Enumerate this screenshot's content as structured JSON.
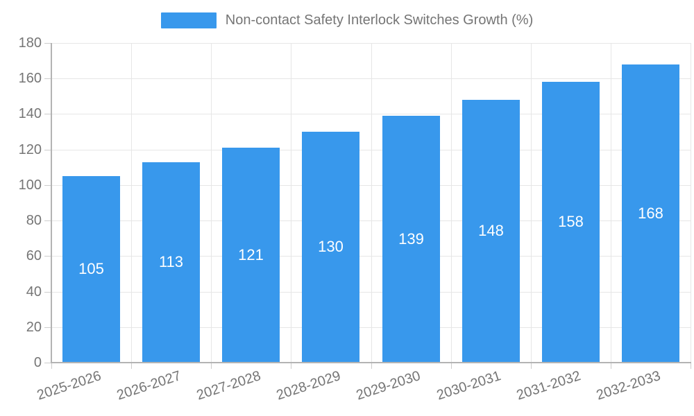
{
  "chart_data": {
    "type": "bar",
    "title": "Non-contact Safety Interlock Switches Growth (%)",
    "categories": [
      "2025-2026",
      "2026-2027",
      "2027-2028",
      "2028-2029",
      "2029-2030",
      "2030-2031",
      "2031-2032",
      "2032-2033"
    ],
    "values": [
      105,
      113,
      121,
      130,
      139,
      148,
      158,
      168
    ],
    "xlabel": "",
    "ylabel": "",
    "ylim": [
      0,
      180
    ],
    "ytick_step": 20,
    "yticks": [
      0,
      20,
      40,
      60,
      80,
      100,
      120,
      140,
      160,
      180
    ],
    "grid": true,
    "legend_position": "top",
    "bar_color": "#3898ec",
    "bar_label_color": "#ffffff",
    "text_color": "#757575",
    "grid_color": "#e6e6e6",
    "axis_color": "#b3b3b3",
    "tick_color": "#cccccc"
  }
}
